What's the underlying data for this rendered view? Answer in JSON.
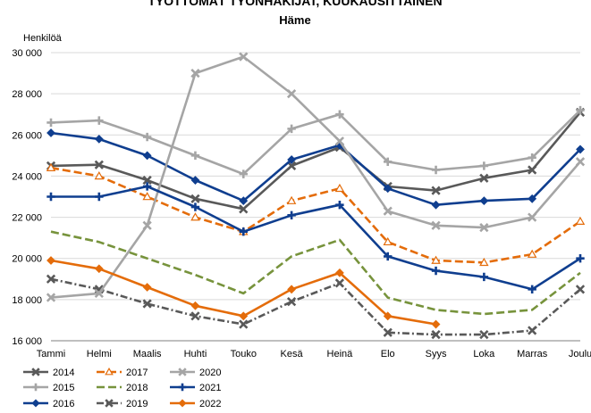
{
  "chart_data": {
    "type": "line",
    "title": "TYÖTTÖMÄT TYÖNHAKIJAT, KUUKAUSITTAINEN",
    "subtitle": "Häme",
    "ylabel": "Henkilöä",
    "xlabel": "",
    "ylim": [
      16000,
      30000
    ],
    "yticks": [
      16000,
      18000,
      20000,
      22000,
      24000,
      26000,
      28000,
      30000
    ],
    "ytick_labels": [
      "16 000",
      "18 000",
      "20 000",
      "22 000",
      "24 000",
      "26 000",
      "28 000",
      "30 000"
    ],
    "categories": [
      "Tammi",
      "Helmi",
      "Maalis",
      "Huhti",
      "Touko",
      "Kesä",
      "Heinä",
      "Elo",
      "Syys",
      "Loka",
      "Marras",
      "Joulu"
    ],
    "grid": true,
    "legend_position": "bottom-left",
    "series": [
      {
        "name": "2014",
        "color": "#595959",
        "marker": "x",
        "dash": "solid",
        "values": [
          24500,
          24550,
          23800,
          22900,
          22400,
          24500,
          25400,
          23500,
          23300,
          23900,
          24300,
          27100
        ]
      },
      {
        "name": "2015",
        "color": "#a5a5a5",
        "marker": "plus",
        "dash": "solid",
        "values": [
          26600,
          26700,
          25900,
          25000,
          24100,
          26300,
          27000,
          24700,
          24300,
          24500,
          24900,
          27200
        ]
      },
      {
        "name": "2016",
        "color": "#0f3e8f",
        "marker": "diamond",
        "dash": "solid",
        "values": [
          26100,
          25800,
          25000,
          23800,
          22800,
          24800,
          25500,
          23400,
          22600,
          22800,
          22900,
          25300
        ]
      },
      {
        "name": "2017",
        "color": "#e46c0a",
        "marker": "triangle",
        "dash": "dashed",
        "values": [
          24400,
          24000,
          23000,
          22000,
          21300,
          22800,
          23400,
          20800,
          19900,
          19800,
          20200,
          21800
        ]
      },
      {
        "name": "2018",
        "color": "#77933c",
        "marker": "none",
        "dash": "dashed",
        "values": [
          21300,
          20800,
          20000,
          19200,
          18300,
          20100,
          20900,
          18100,
          17500,
          17300,
          17500,
          19300
        ]
      },
      {
        "name": "2019",
        "color": "#595959",
        "marker": "x",
        "dash": "dashdot",
        "values": [
          19000,
          18500,
          17800,
          17200,
          16800,
          17900,
          18800,
          16400,
          16300,
          16300,
          16500,
          18500
        ]
      },
      {
        "name": "2020",
        "color": "#a5a5a5",
        "marker": "x",
        "dash": "solid",
        "values": [
          18100,
          18300,
          21600,
          29000,
          29800,
          28000,
          25700,
          22300,
          21600,
          21500,
          22000,
          24700
        ]
      },
      {
        "name": "2021",
        "color": "#0f3e8f",
        "marker": "plus",
        "dash": "solid",
        "values": [
          23000,
          23000,
          23500,
          22500,
          21300,
          22100,
          22600,
          20100,
          19400,
          19100,
          18500,
          20000
        ]
      },
      {
        "name": "2022",
        "color": "#e46c0a",
        "marker": "diamond",
        "dash": "solid",
        "values": [
          19900,
          19500,
          18600,
          17700,
          17200,
          18500,
          19300,
          17200,
          16800,
          null,
          null,
          null
        ]
      }
    ]
  }
}
